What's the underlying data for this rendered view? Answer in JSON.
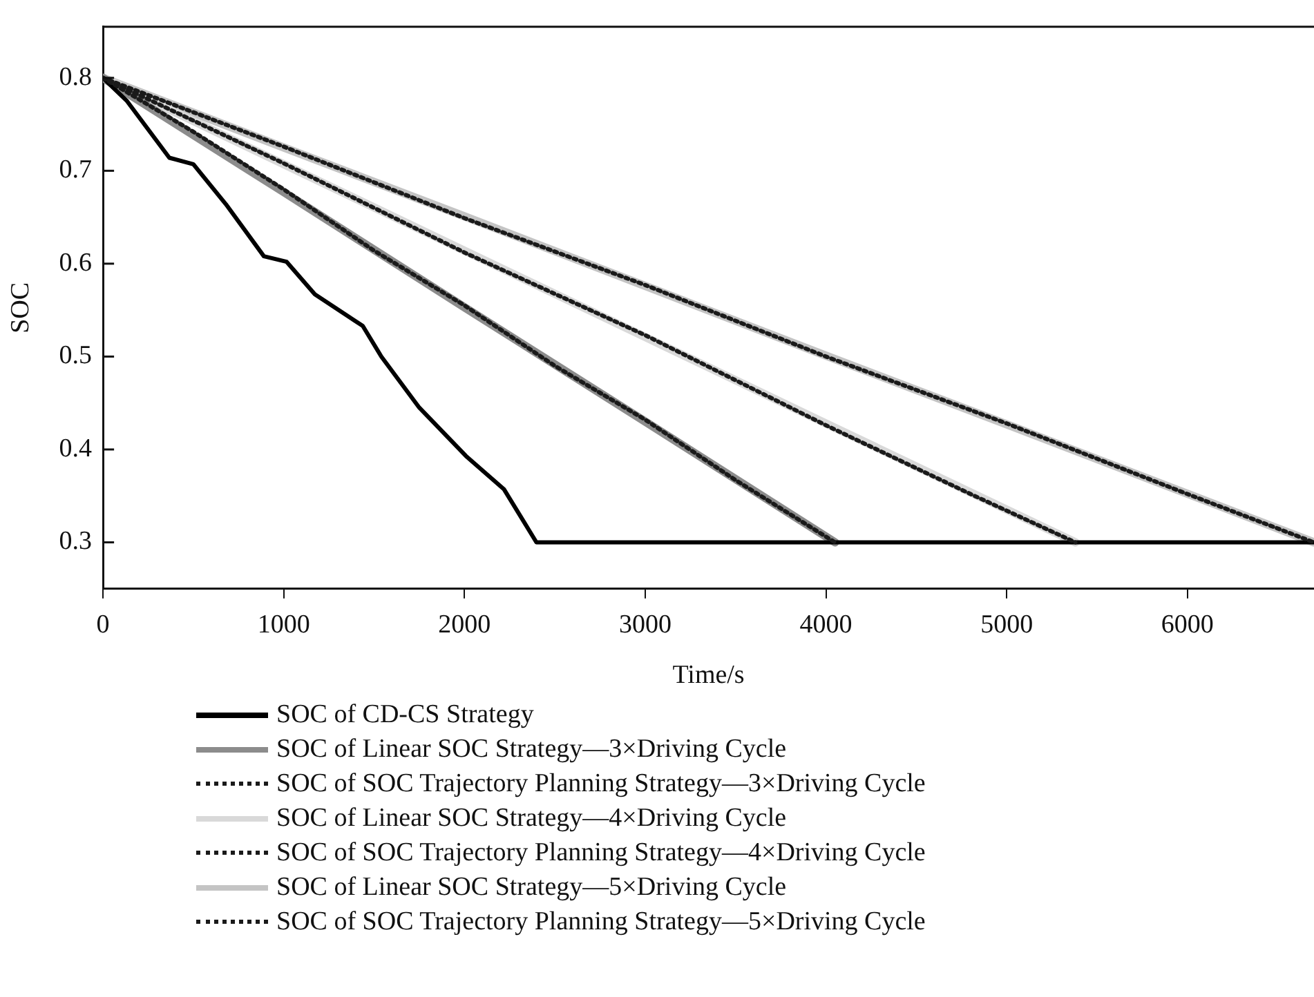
{
  "chart_data": {
    "type": "line",
    "xlabel": "Time/s",
    "ylabel": "SOC",
    "xlim": [
      0,
      6700
    ],
    "xticks": [
      0,
      1000,
      2000,
      3000,
      4000,
      5000,
      6000
    ],
    "ylim": [
      0.25,
      0.855
    ],
    "yticks": [
      0.3,
      0.4,
      0.5,
      0.6,
      0.7,
      0.8
    ],
    "grid": false,
    "legend": "bottom",
    "marker": "none",
    "series": [
      {
        "name": "SOC of CD-CS Strategy",
        "color": "#000000",
        "line_style": "solid",
        "x": [
          0,
          133,
          367,
          500,
          680,
          890,
          1016,
          1172,
          1437,
          1540,
          1750,
          2008,
          2219,
          2398,
          6700
        ],
        "values": [
          0.8,
          0.775,
          0.714,
          0.707,
          0.664,
          0.608,
          0.602,
          0.567,
          0.533,
          0.5,
          0.445,
          0.393,
          0.357,
          0.3,
          0.3
        ]
      },
      {
        "name": "SOC of Linear SOC Strategy—3×Driving Cycle",
        "color": "#8c8c8c",
        "line_style": "solid",
        "x": [
          0,
          1000,
          2000,
          3000,
          4050
        ],
        "values": [
          0.8,
          0.677,
          0.553,
          0.43,
          0.3
        ]
      },
      {
        "name": "SOC of SOC Trajectory Planning Strategy—3×Driving Cycle",
        "color": "#1a1a1a",
        "line_style": "dotted",
        "x": [
          0,
          500,
          1000,
          1500,
          2000,
          2500,
          3000,
          3500,
          4050
        ],
        "values": [
          0.8,
          0.742,
          0.68,
          0.614,
          0.555,
          0.49,
          0.432,
          0.367,
          0.3
        ]
      },
      {
        "name": "SOC of Linear SOC Strategy—4×Driving Cycle",
        "color": "#d9d9d9",
        "line_style": "solid",
        "x": [
          0,
          1000,
          2000,
          3000,
          4000,
          5380
        ],
        "values": [
          0.8,
          0.707,
          0.614,
          0.521,
          0.428,
          0.3
        ]
      },
      {
        "name": "SOC of SOC Trajectory Planning Strategy—4×Driving Cycle",
        "color": "#1a1a1a",
        "line_style": "dotted",
        "x": [
          0,
          1000,
          2000,
          3000,
          4000,
          4800,
          5380
        ],
        "values": [
          0.8,
          0.708,
          0.612,
          0.523,
          0.426,
          0.352,
          0.3
        ]
      },
      {
        "name": "SOC of Linear SOC Strategy—5×Driving Cycle",
        "color": "#c4c4c4",
        "line_style": "solid",
        "x": [
          0,
          1000,
          2000,
          3000,
          4000,
          5000,
          6700
        ],
        "values": [
          0.8,
          0.725,
          0.651,
          0.576,
          0.501,
          0.427,
          0.3
        ]
      },
      {
        "name": "SOC of SOC Trajectory Planning Strategy—5×Driving Cycle",
        "color": "#1a1a1a",
        "line_style": "dotted",
        "x": [
          0,
          1000,
          2000,
          3000,
          4000,
          5000,
          6000,
          6700
        ],
        "values": [
          0.8,
          0.726,
          0.649,
          0.577,
          0.5,
          0.428,
          0.352,
          0.3
        ]
      }
    ]
  }
}
